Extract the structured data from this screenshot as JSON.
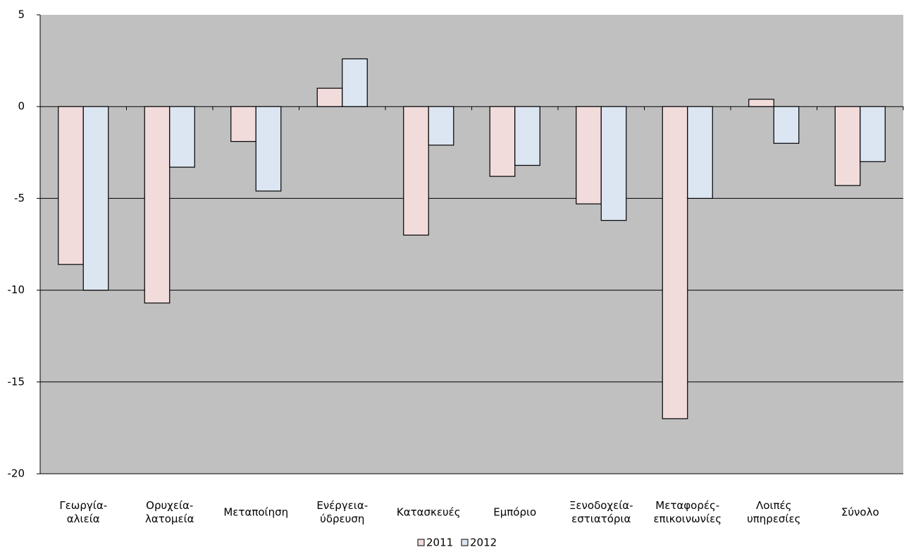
{
  "chart_data": {
    "type": "bar",
    "categories": [
      [
        "Γεωργία-",
        "αλιεία"
      ],
      [
        "Ορυχεία-",
        "λατομεία"
      ],
      [
        "Μεταποίηση"
      ],
      [
        "Ενέργεια-",
        "ύδρευση"
      ],
      [
        "Κατασκευές"
      ],
      [
        "Εμπόριο"
      ],
      [
        "Ξενοδοχεία-",
        "εστιατόρια"
      ],
      [
        "Μεταφορές-",
        "επικοινωνίες"
      ],
      [
        "Λοιπές",
        "υπηρεσίες"
      ],
      [
        "Σύνολο"
      ]
    ],
    "series": [
      {
        "name": "2011",
        "color": "#f2dcdb",
        "values": [
          -8.6,
          -10.7,
          -1.9,
          1.0,
          -7.0,
          -3.8,
          -5.3,
          -17.0,
          0.4,
          -4.3
        ]
      },
      {
        "name": "2012",
        "color": "#dce6f2",
        "values": [
          -10.0,
          -3.3,
          -4.6,
          2.6,
          -2.1,
          -3.2,
          -6.2,
          -5.0,
          -2.0,
          -3.0
        ]
      }
    ],
    "ylim": [
      -20,
      5
    ],
    "yticks": [
      -20,
      -15,
      -10,
      -5,
      0,
      5
    ],
    "grid": true,
    "legend": "bottom"
  }
}
